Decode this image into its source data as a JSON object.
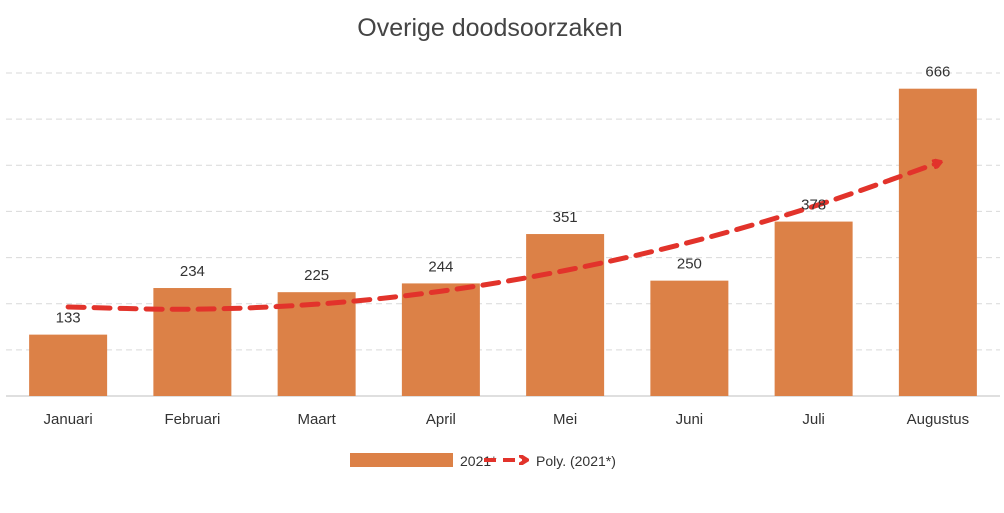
{
  "chart_data": {
    "type": "bar",
    "title": "Overige doodsoorzaken",
    "categories": [
      "Januari",
      "Februari",
      "Maart",
      "April",
      "Mei",
      "Juni",
      "Juli",
      "Augustus"
    ],
    "series": [
      {
        "name": "2021*",
        "values": [
          133,
          234,
          225,
          244,
          351,
          250,
          378,
          666
        ],
        "color": "#DC8147"
      }
    ],
    "trendline": {
      "name": "Poly. (2021*)",
      "type": "polynomial",
      "values": [
        193,
        188,
        199,
        227,
        272,
        333,
        411,
        505
      ],
      "color": "#E2332B"
    },
    "ylim": [
      0,
      700
    ],
    "grid": true,
    "legend_position": "bottom"
  }
}
